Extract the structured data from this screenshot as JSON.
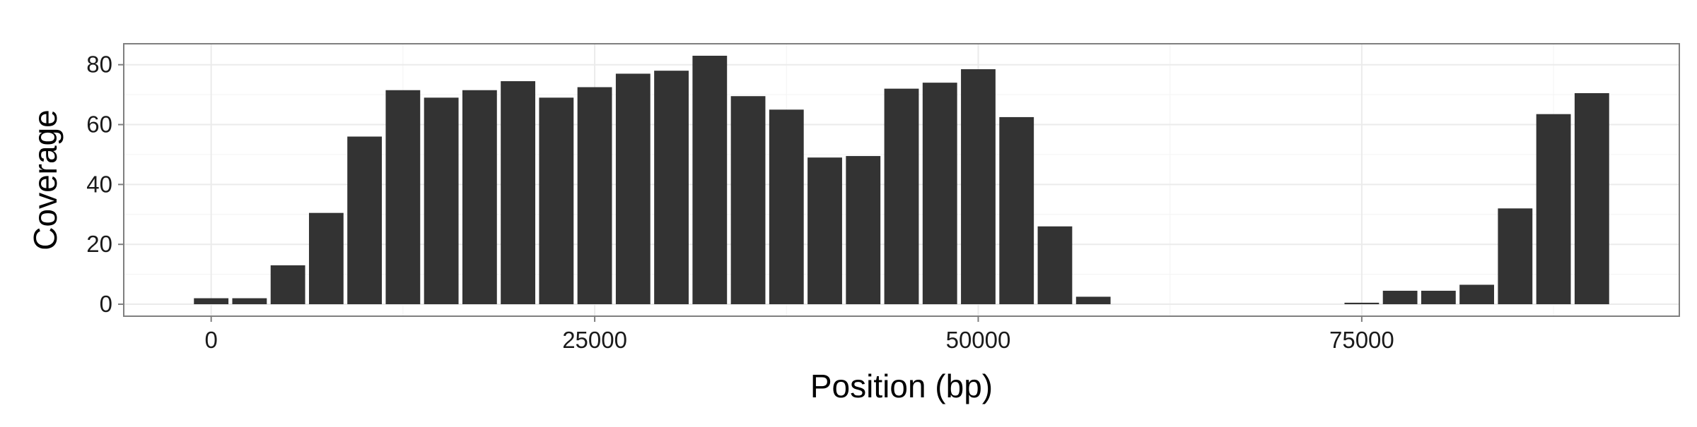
{
  "chart_data": {
    "type": "bar",
    "title": "",
    "xlabel": "Position (bp)",
    "ylabel": "Coverage",
    "xlim": [
      -5700,
      95700
    ],
    "ylim": [
      -4,
      87
    ],
    "xticks": [
      0,
      25000,
      50000,
      75000
    ],
    "xtick_labels": [
      "0",
      "25000",
      "50000",
      "75000"
    ],
    "yticks": [
      0,
      20,
      40,
      60,
      80
    ],
    "ytick_labels": [
      "0",
      "20",
      "40",
      "60",
      "80"
    ],
    "grid": true,
    "legend": "none",
    "bar_color": "#333333",
    "bar_width": 2250,
    "x": [
      0,
      2500,
      5000,
      7500,
      10000,
      12500,
      15000,
      17500,
      20000,
      22500,
      25000,
      27500,
      30000,
      32500,
      35000,
      37500,
      40000,
      42500,
      45000,
      47500,
      50000,
      52500,
      55000,
      57500,
      75000,
      77500,
      80000,
      82500,
      85000,
      87500,
      90000
    ],
    "values": [
      2,
      2,
      13,
      30.5,
      56,
      71.5,
      69,
      71.5,
      74.5,
      69,
      72.5,
      77,
      78,
      83,
      69.5,
      65,
      49,
      49.5,
      72,
      74,
      78.5,
      62.5,
      26,
      2.5,
      0.5,
      4.5,
      4.5,
      6.5,
      32,
      63.5,
      70.5
    ]
  }
}
